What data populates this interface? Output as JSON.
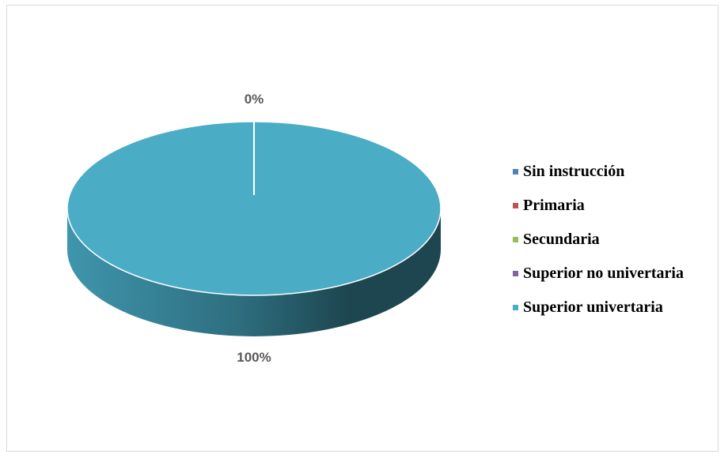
{
  "chart_data": {
    "type": "pie",
    "style": "3d",
    "categories": [
      "Sin instrucción",
      "Primaria",
      "Secundaria",
      "Superior no univertaria",
      "Superior univertaria"
    ],
    "values": [
      0,
      0,
      0,
      0,
      100
    ],
    "colors": [
      "#4f81bd",
      "#c0504d",
      "#9bbb59",
      "#8064a2",
      "#4bacc6"
    ],
    "data_labels": [
      {
        "text": "0%"
      },
      {
        "text": "100%"
      }
    ],
    "legend_position": "right",
    "title": ""
  }
}
